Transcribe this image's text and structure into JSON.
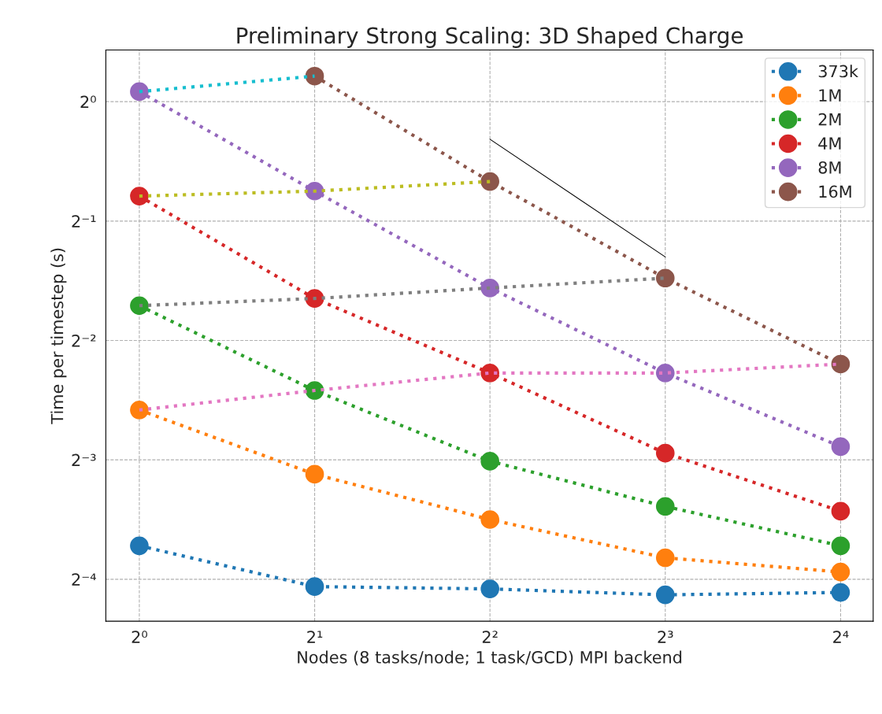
{
  "chart_data": {
    "type": "line",
    "title": "Preliminary Strong Scaling: 3D Shaped Charge",
    "xlabel": "Nodes (8 tasks/node; 1 task/GCD) MPI backend",
    "ylabel": "Time per timestep (s)",
    "x": [
      1,
      2,
      4,
      8,
      16
    ],
    "log": "xy",
    "marker": "circle",
    "line_style": "dotted",
    "grid": true,
    "legend": "top right",
    "xlim": [
      0.876,
      18.2
    ],
    "ylim": [
      0.049,
      1.35
    ],
    "xticks": [
      {
        "value": 1,
        "label": "2⁰"
      },
      {
        "value": 2,
        "label": "2¹"
      },
      {
        "value": 4,
        "label": "2²"
      },
      {
        "value": 8,
        "label": "2³"
      },
      {
        "value": 16,
        "label": "2⁴"
      }
    ],
    "yticks": [
      {
        "value": 0.0625,
        "label": "2⁻⁴"
      },
      {
        "value": 0.125,
        "label": "2⁻³"
      },
      {
        "value": 0.25,
        "label": "2⁻²"
      },
      {
        "value": 0.5,
        "label": "2⁻¹"
      },
      {
        "value": 1,
        "label": "2⁰"
      }
    ],
    "series": [
      {
        "name": "373k",
        "color": "#1f77b4",
        "values": [
          0.0759,
          0.0599,
          0.0591,
          0.0571,
          0.0579
        ]
      },
      {
        "name": "1M",
        "color": "#ff7f0e",
        "values": [
          0.167,
          0.115,
          0.0884,
          0.0708,
          0.0652
        ]
      },
      {
        "name": "2M",
        "color": "#2ca02c",
        "values": [
          0.306,
          0.187,
          0.124,
          0.0954,
          0.0759
        ]
      },
      {
        "name": "4M",
        "color": "#d62728",
        "values": [
          0.578,
          0.319,
          0.207,
          0.13,
          0.0928
        ]
      },
      {
        "name": "8M",
        "color": "#9467bd",
        "values": [
          1.06,
          0.595,
          0.339,
          0.207,
          0.135
        ]
      },
      {
        "name": "16M",
        "color": "#8c564b",
        "values": [
          null,
          1.16,
          0.629,
          0.359,
          0.218
        ]
      },
      {
        "color": "#17becf",
        "marker": "none",
        "x": [
          1,
          2
        ],
        "values": [
          1.06,
          1.16
        ]
      },
      {
        "color": "#bcbd22",
        "marker": "none",
        "x": [
          1,
          2,
          4
        ],
        "values": [
          0.578,
          0.595,
          0.629
        ]
      },
      {
        "color": "#7f7f7f",
        "marker": "none",
        "x": [
          1,
          2,
          4,
          8
        ],
        "values": [
          0.306,
          0.319,
          0.339,
          0.359
        ]
      },
      {
        "color": "#e377c2",
        "marker": "none",
        "x": [
          1,
          2,
          4,
          8,
          16
        ],
        "values": [
          0.167,
          0.187,
          0.207,
          0.207,
          0.218
        ]
      },
      {
        "color": "#000000",
        "marker": "none",
        "line_style": "solid",
        "x": [
          4,
          8
        ],
        "values": [
          0.804,
          0.406
        ]
      }
    ]
  }
}
